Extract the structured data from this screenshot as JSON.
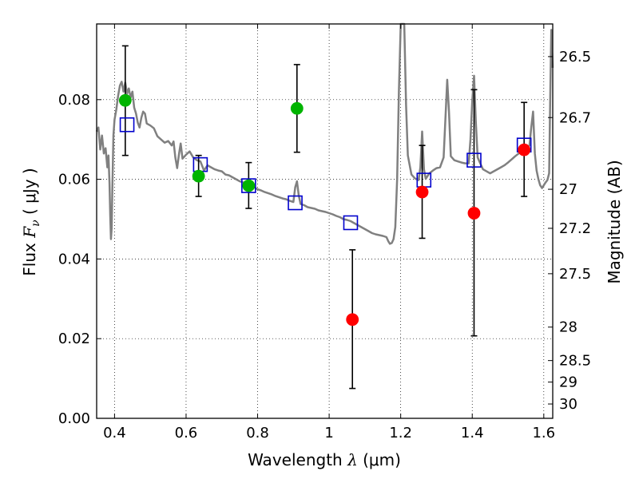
{
  "chart_data": {
    "type": "scatter",
    "title": "",
    "xlabel": {
      "prefix": "Wavelength  ",
      "symbol": "λ",
      "unit": " (μm)"
    },
    "ylabel": {
      "prefix": "Flux  ",
      "symbol": "F",
      "sub": "ν",
      "unit": "  ( μJy )"
    },
    "y2label": "Magnitude (AB)",
    "xlim": [
      0.35,
      1.625
    ],
    "ylim": [
      0.0,
      0.099
    ],
    "grid": true,
    "x_ticks": [
      {
        "value": 0.4,
        "label": "0.4"
      },
      {
        "value": 0.6,
        "label": "0.6"
      },
      {
        "value": 0.8,
        "label": "0.8"
      },
      {
        "value": 1.0,
        "label": "1"
      },
      {
        "value": 1.2,
        "label": "1.2"
      },
      {
        "value": 1.4,
        "label": "1.4"
      },
      {
        "value": 1.6,
        "label": "1.6"
      }
    ],
    "y_ticks": [
      {
        "value": 0.0,
        "label": "0.00"
      },
      {
        "value": 0.02,
        "label": "0.02"
      },
      {
        "value": 0.04,
        "label": "0.04"
      },
      {
        "value": 0.06,
        "label": "0.06"
      },
      {
        "value": 0.08,
        "label": "0.08"
      }
    ],
    "y2_ticks": [
      {
        "label": "26.5",
        "flux": 0.0908
      },
      {
        "label": "26.7",
        "flux": 0.0755
      },
      {
        "label": "27",
        "flux": 0.0575
      },
      {
        "label": "27.2",
        "flux": 0.0477
      },
      {
        "label": "27.5",
        "flux": 0.0363
      },
      {
        "label": "28",
        "flux": 0.0229
      },
      {
        "label": "28.5",
        "flux": 0.0145
      },
      {
        "label": "29",
        "flux": 0.0091
      },
      {
        "label": "30",
        "flux": 0.0036
      }
    ],
    "colors": {
      "green": "#00b400",
      "red": "#ff0000",
      "blue_box": "#0000cc",
      "sed": "#808080",
      "errbar": "#000000"
    },
    "series": [
      {
        "marker": "circle",
        "color": "#00b400",
        "points": [
          {
            "x": 0.43,
            "y": 0.0798,
            "yerr_lo": 0.066,
            "yerr_hi": 0.0935
          },
          {
            "x": 0.635,
            "y": 0.0608,
            "yerr_lo": 0.0557,
            "yerr_hi": 0.066
          },
          {
            "x": 0.775,
            "y": 0.0584,
            "yerr_lo": 0.0527,
            "yerr_hi": 0.0642
          },
          {
            "x": 0.91,
            "y": 0.0778,
            "yerr_lo": 0.0668,
            "yerr_hi": 0.0888
          }
        ]
      },
      {
        "marker": "circle",
        "color": "#ff0000",
        "points": [
          {
            "x": 1.065,
            "y": 0.0248,
            "yerr_lo": 0.0075,
            "yerr_hi": 0.0423
          },
          {
            "x": 1.26,
            "y": 0.0568,
            "yerr_lo": 0.0452,
            "yerr_hi": 0.0685
          },
          {
            "x": 1.405,
            "y": 0.0515,
            "yerr_lo": 0.0207,
            "yerr_hi": 0.0825
          },
          {
            "x": 1.545,
            "y": 0.0674,
            "yerr_lo": 0.0557,
            "yerr_hi": 0.0793
          }
        ]
      },
      {
        "marker": "open-square",
        "color": "#0000cc",
        "points": [
          {
            "x": 0.435,
            "y": 0.0737
          },
          {
            "x": 0.64,
            "y": 0.0637
          },
          {
            "x": 0.775,
            "y": 0.0584
          },
          {
            "x": 0.905,
            "y": 0.0541
          },
          {
            "x": 1.06,
            "y": 0.0491
          },
          {
            "x": 1.265,
            "y": 0.0598
          },
          {
            "x": 1.405,
            "y": 0.0648
          },
          {
            "x": 1.545,
            "y": 0.0686
          }
        ]
      },
      {
        "marker": "line",
        "color": "#808080",
        "points": [
          [
            0.35,
            0.072
          ],
          [
            0.355,
            0.073
          ],
          [
            0.36,
            0.0675
          ],
          [
            0.365,
            0.071
          ],
          [
            0.37,
            0.0665
          ],
          [
            0.375,
            0.0678
          ],
          [
            0.38,
            0.063
          ],
          [
            0.383,
            0.066
          ],
          [
            0.386,
            0.059
          ],
          [
            0.388,
            0.051
          ],
          [
            0.39,
            0.045
          ],
          [
            0.392,
            0.0478
          ],
          [
            0.394,
            0.058
          ],
          [
            0.397,
            0.071
          ],
          [
            0.4,
            0.075
          ],
          [
            0.405,
            0.0775
          ],
          [
            0.41,
            0.081
          ],
          [
            0.415,
            0.0835
          ],
          [
            0.42,
            0.0845
          ],
          [
            0.425,
            0.082
          ],
          [
            0.43,
            0.0843
          ],
          [
            0.435,
            0.0815
          ],
          [
            0.44,
            0.0828
          ],
          [
            0.445,
            0.0805
          ],
          [
            0.45,
            0.082
          ],
          [
            0.455,
            0.078
          ],
          [
            0.46,
            0.0765
          ],
          [
            0.465,
            0.0742
          ],
          [
            0.47,
            0.073
          ],
          [
            0.475,
            0.0755
          ],
          [
            0.48,
            0.077
          ],
          [
            0.485,
            0.0765
          ],
          [
            0.49,
            0.074
          ],
          [
            0.5,
            0.0735
          ],
          [
            0.51,
            0.0728
          ],
          [
            0.52,
            0.0708
          ],
          [
            0.53,
            0.07
          ],
          [
            0.54,
            0.0692
          ],
          [
            0.55,
            0.0696
          ],
          [
            0.56,
            0.0685
          ],
          [
            0.565,
            0.0695
          ],
          [
            0.57,
            0.0655
          ],
          [
            0.575,
            0.0628
          ],
          [
            0.58,
            0.0662
          ],
          [
            0.585,
            0.069
          ],
          [
            0.59,
            0.0652
          ],
          [
            0.6,
            0.0662
          ],
          [
            0.61,
            0.067
          ],
          [
            0.62,
            0.0655
          ],
          [
            0.63,
            0.0648
          ],
          [
            0.64,
            0.0645
          ],
          [
            0.65,
            0.0622
          ],
          [
            0.66,
            0.0635
          ],
          [
            0.67,
            0.063
          ],
          [
            0.68,
            0.0625
          ],
          [
            0.69,
            0.0622
          ],
          [
            0.7,
            0.062
          ],
          [
            0.71,
            0.0612
          ],
          [
            0.72,
            0.061
          ],
          [
            0.73,
            0.0605
          ],
          [
            0.74,
            0.06
          ],
          [
            0.75,
            0.0595
          ],
          [
            0.76,
            0.0592
          ],
          [
            0.77,
            0.059
          ],
          [
            0.78,
            0.0583
          ],
          [
            0.79,
            0.058
          ],
          [
            0.8,
            0.0575
          ],
          [
            0.81,
            0.0572
          ],
          [
            0.82,
            0.0568
          ],
          [
            0.83,
            0.0565
          ],
          [
            0.84,
            0.0562
          ],
          [
            0.85,
            0.0558
          ],
          [
            0.86,
            0.0555
          ],
          [
            0.87,
            0.0552
          ],
          [
            0.88,
            0.055
          ],
          [
            0.89,
            0.0546
          ],
          [
            0.9,
            0.0543
          ],
          [
            0.905,
            0.058
          ],
          [
            0.91,
            0.0595
          ],
          [
            0.915,
            0.056
          ],
          [
            0.92,
            0.0538
          ],
          [
            0.93,
            0.0535
          ],
          [
            0.94,
            0.053
          ],
          [
            0.95,
            0.0528
          ],
          [
            0.96,
            0.0526
          ],
          [
            0.97,
            0.0522
          ],
          [
            0.98,
            0.052
          ],
          [
            0.99,
            0.0518
          ],
          [
            1.0,
            0.0515
          ],
          [
            1.01,
            0.0512
          ],
          [
            1.02,
            0.0508
          ],
          [
            1.03,
            0.0505
          ],
          [
            1.04,
            0.05
          ],
          [
            1.05,
            0.0498
          ],
          [
            1.06,
            0.0495
          ],
          [
            1.07,
            0.049
          ],
          [
            1.08,
            0.0485
          ],
          [
            1.09,
            0.048
          ],
          [
            1.1,
            0.0475
          ],
          [
            1.11,
            0.047
          ],
          [
            1.12,
            0.0465
          ],
          [
            1.13,
            0.0462
          ],
          [
            1.14,
            0.046
          ],
          [
            1.15,
            0.0458
          ],
          [
            1.16,
            0.0455
          ],
          [
            1.165,
            0.0445
          ],
          [
            1.17,
            0.0438
          ],
          [
            1.175,
            0.044
          ],
          [
            1.18,
            0.045
          ],
          [
            1.185,
            0.048
          ],
          [
            1.19,
            0.06
          ],
          [
            1.195,
            0.082
          ],
          [
            1.2,
            0.099
          ],
          [
            1.21,
            0.099
          ],
          [
            1.215,
            0.0785
          ],
          [
            1.22,
            0.066
          ],
          [
            1.23,
            0.0612
          ],
          [
            1.24,
            0.0602
          ],
          [
            1.25,
            0.0598
          ],
          [
            1.255,
            0.063
          ],
          [
            1.26,
            0.072
          ],
          [
            1.265,
            0.0625
          ],
          [
            1.27,
            0.0601
          ],
          [
            1.28,
            0.0615
          ],
          [
            1.29,
            0.0622
          ],
          [
            1.3,
            0.0628
          ],
          [
            1.31,
            0.063
          ],
          [
            1.32,
            0.0655
          ],
          [
            1.325,
            0.075
          ],
          [
            1.33,
            0.085
          ],
          [
            1.335,
            0.077
          ],
          [
            1.34,
            0.0658
          ],
          [
            1.35,
            0.0648
          ],
          [
            1.36,
            0.0645
          ],
          [
            1.37,
            0.0642
          ],
          [
            1.38,
            0.064
          ],
          [
            1.39,
            0.064
          ],
          [
            1.395,
            0.07
          ],
          [
            1.4,
            0.0795
          ],
          [
            1.405,
            0.086
          ],
          [
            1.41,
            0.0745
          ],
          [
            1.415,
            0.0655
          ],
          [
            1.42,
            0.0645
          ],
          [
            1.43,
            0.0625
          ],
          [
            1.44,
            0.062
          ],
          [
            1.45,
            0.0615
          ],
          [
            1.46,
            0.062
          ],
          [
            1.47,
            0.0625
          ],
          [
            1.48,
            0.063
          ],
          [
            1.49,
            0.0635
          ],
          [
            1.5,
            0.0642
          ],
          [
            1.51,
            0.065
          ],
          [
            1.52,
            0.0658
          ],
          [
            1.53,
            0.0665
          ],
          [
            1.54,
            0.0672
          ],
          [
            1.55,
            0.0678
          ],
          [
            1.56,
            0.0685
          ],
          [
            1.565,
            0.073
          ],
          [
            1.57,
            0.077
          ],
          [
            1.575,
            0.0665
          ],
          [
            1.58,
            0.0622
          ],
          [
            1.585,
            0.06
          ],
          [
            1.59,
            0.0585
          ],
          [
            1.595,
            0.0578
          ],
          [
            1.6,
            0.0585
          ],
          [
            1.605,
            0.0592
          ],
          [
            1.61,
            0.0598
          ],
          [
            1.615,
            0.0615
          ],
          [
            1.618,
            0.081
          ],
          [
            1.621,
            0.0975
          ],
          [
            1.625,
            0.088
          ]
        ]
      }
    ]
  }
}
